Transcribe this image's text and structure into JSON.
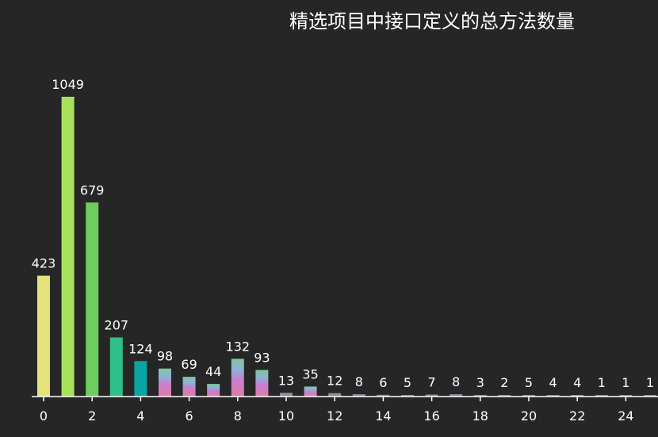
{
  "chart_data": {
    "type": "bar",
    "title": "精选项目中接口定义的总方法数量",
    "xlabel": "",
    "ylabel": "",
    "categories": [
      0,
      1,
      2,
      3,
      4,
      5,
      6,
      7,
      8,
      9,
      10,
      11,
      12,
      13,
      14,
      15,
      16,
      17,
      18,
      19,
      20,
      21,
      22,
      23,
      24,
      25
    ],
    "values": [
      423,
      1049,
      679,
      207,
      124,
      98,
      69,
      44,
      132,
      93,
      13,
      35,
      12,
      8,
      6,
      5,
      7,
      8,
      3,
      2,
      5,
      4,
      4,
      1,
      1,
      1
    ],
    "xticks": [
      "0",
      "2",
      "4",
      "6",
      "8",
      "10",
      "12",
      "14",
      "16",
      "18",
      "20",
      "22",
      "24"
    ],
    "ylim": [
      0,
      1049
    ],
    "grid": false,
    "legend": "none",
    "colors": {
      "background": "#262626",
      "text": "#ffffff",
      "axis": "#ffffff",
      "bar_gradient_high": "#8ddc4f",
      "bar_gradient_mid": "#2fb59a",
      "bar_gradient_teal": "#0f9ea0",
      "stripe_top": "#7fc89c",
      "stripe_mid": "#8fb0d8",
      "stripe_low": "#c87fcf",
      "stripe_base": "#e27aa8",
      "bar_small": "#8a8fa8"
    },
    "bar_colors": [
      "#e5e27a",
      "#a7e15a",
      "#6fcc5e",
      "#2fbf8a",
      "#0aa4a4",
      "stripe",
      "stripe",
      "stripe",
      "stripe",
      "stripe",
      "small",
      "stripe",
      "small",
      "small",
      "small",
      "small",
      "small",
      "small",
      "small",
      "small",
      "small",
      "small",
      "small",
      "small",
      "small",
      "small"
    ]
  }
}
